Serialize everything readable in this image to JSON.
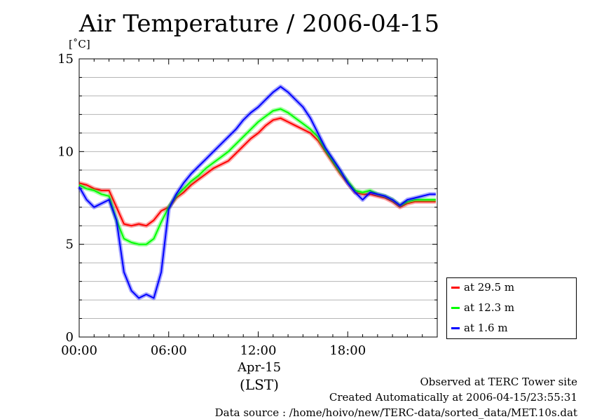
{
  "chart_data": {
    "type": "line",
    "title": "Air Temperature / 2006-04-15",
    "ylabel": "[˚C]",
    "xlabel": "(LST)",
    "x_date_label": "Apr-15",
    "ylim": [
      0,
      15
    ],
    "xlim": [
      0,
      24
    ],
    "y_ticks": [
      "0",
      "5",
      "10",
      "15"
    ],
    "x_ticks": [
      {
        "value": 0,
        "label": "00:00"
      },
      {
        "value": 6,
        "label": "06:00"
      },
      {
        "value": 12,
        "label": "12:00"
      },
      {
        "value": 18,
        "label": "18:00"
      }
    ],
    "grid": "horizontal every 1 ˚C",
    "legend_placement": "right-bottom, outside",
    "x": [
      0,
      0.5,
      1,
      1.5,
      2,
      2.5,
      3,
      3.5,
      4,
      4.5,
      5,
      5.5,
      6,
      6.5,
      7,
      7.5,
      8,
      8.5,
      9,
      9.5,
      10,
      10.5,
      11,
      11.5,
      12,
      12.5,
      13,
      13.5,
      14,
      14.5,
      15,
      15.5,
      16,
      16.5,
      17,
      17.5,
      18,
      18.5,
      19,
      19.5,
      20,
      20.5,
      21,
      21.5,
      22,
      22.5,
      23,
      23.5,
      23.9
    ],
    "series": [
      {
        "name": "at 29.5 m",
        "color": "#ff0000",
        "values": [
          8.3,
          8.2,
          8.0,
          7.9,
          7.9,
          7.0,
          6.1,
          6.0,
          6.1,
          6.0,
          6.3,
          6.8,
          7.0,
          7.5,
          7.8,
          8.2,
          8.5,
          8.8,
          9.1,
          9.3,
          9.5,
          9.9,
          10.3,
          10.7,
          11.0,
          11.4,
          11.7,
          11.8,
          11.6,
          11.4,
          11.2,
          11.0,
          10.6,
          10.0,
          9.4,
          8.8,
          8.3,
          7.8,
          7.7,
          7.7,
          7.6,
          7.5,
          7.3,
          7.0,
          7.2,
          7.3,
          7.3,
          7.3,
          7.3
        ]
      },
      {
        "name": "at 12.3 m",
        "color": "#00ff00",
        "values": [
          8.2,
          8.0,
          7.9,
          7.7,
          7.6,
          6.3,
          5.3,
          5.1,
          5.0,
          5.0,
          5.3,
          6.2,
          7.0,
          7.6,
          8.0,
          8.4,
          8.7,
          9.1,
          9.4,
          9.7,
          10.0,
          10.4,
          10.8,
          11.2,
          11.6,
          11.9,
          12.2,
          12.3,
          12.1,
          11.8,
          11.5,
          11.2,
          10.8,
          10.1,
          9.5,
          8.9,
          8.4,
          7.9,
          7.8,
          7.9,
          7.7,
          7.6,
          7.4,
          7.1,
          7.3,
          7.4,
          7.4,
          7.4,
          7.4
        ]
      },
      {
        "name": "at 1.6 m",
        "color": "#0000ff",
        "values": [
          8.1,
          7.4,
          7.0,
          7.2,
          7.4,
          6.3,
          3.5,
          2.5,
          2.1,
          2.3,
          2.1,
          3.5,
          6.9,
          7.7,
          8.3,
          8.8,
          9.2,
          9.6,
          10.0,
          10.4,
          10.8,
          11.2,
          11.7,
          12.1,
          12.4,
          12.8,
          13.2,
          13.5,
          13.2,
          12.8,
          12.4,
          11.8,
          11.0,
          10.2,
          9.6,
          9.0,
          8.3,
          7.8,
          7.4,
          7.8,
          7.7,
          7.6,
          7.4,
          7.1,
          7.4,
          7.5,
          7.6,
          7.7,
          7.7
        ]
      }
    ]
  },
  "footer": {
    "line1": "Observed at TERC Tower site",
    "line2": "Created Automatically at 2006-04-15/23:55:31",
    "line3": "Data source : /home/hoivo/new/TERC-data/sorted_data/MET.10s.dat"
  }
}
